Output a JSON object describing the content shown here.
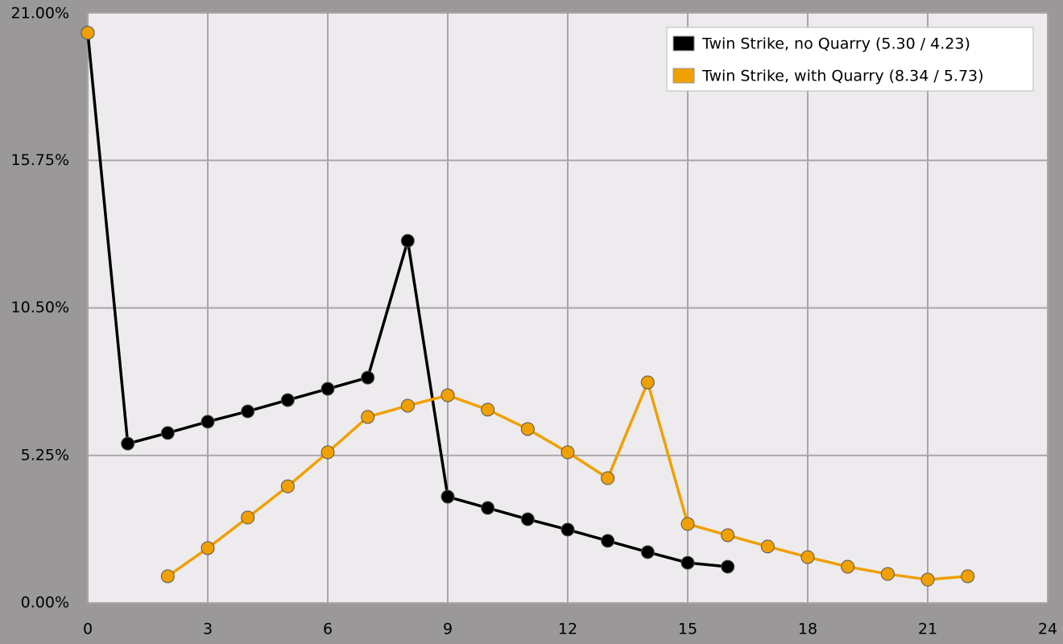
{
  "chart_data": {
    "type": "line",
    "x": [
      0,
      1,
      2,
      3,
      4,
      5,
      6,
      7,
      8,
      9,
      10,
      11,
      12,
      13,
      14,
      15,
      16,
      17,
      18,
      19,
      20,
      21,
      22
    ],
    "series": [
      {
        "name": "Twin Strike, no Quarry (5.30 / 4.23)",
        "color": "#000000",
        "values": [
          20.29,
          5.67,
          6.05,
          6.45,
          6.82,
          7.22,
          7.62,
          8.02,
          12.89,
          3.78,
          3.38,
          2.98,
          2.61,
          2.21,
          1.81,
          1.43,
          1.29,
          null,
          null,
          null,
          null,
          null,
          null
        ]
      },
      {
        "name": "Twin Strike, with Quarry (8.34 / 5.73)",
        "color": "#f0a000",
        "values": [
          20.29,
          null,
          0.95,
          1.95,
          3.04,
          4.15,
          5.36,
          6.62,
          7.02,
          7.39,
          6.88,
          6.19,
          5.36,
          4.44,
          7.85,
          2.81,
          2.41,
          2.01,
          1.63,
          1.29,
          1.03,
          0.83,
          0.95
        ]
      }
    ],
    "xlim": [
      0,
      24
    ],
    "xticks": [
      0,
      3,
      6,
      9,
      12,
      15,
      18,
      21,
      24
    ],
    "ylim": [
      0,
      21
    ],
    "yticks": [
      {
        "value": 0,
        "label": "0.00%"
      },
      {
        "value": 5.25,
        "label": "5.25%"
      },
      {
        "value": 10.5,
        "label": "10.50%"
      },
      {
        "value": 15.75,
        "label": "15.75%"
      },
      {
        "value": 21,
        "label": "21.00%"
      }
    ],
    "grid": true,
    "legend": "top-right"
  }
}
